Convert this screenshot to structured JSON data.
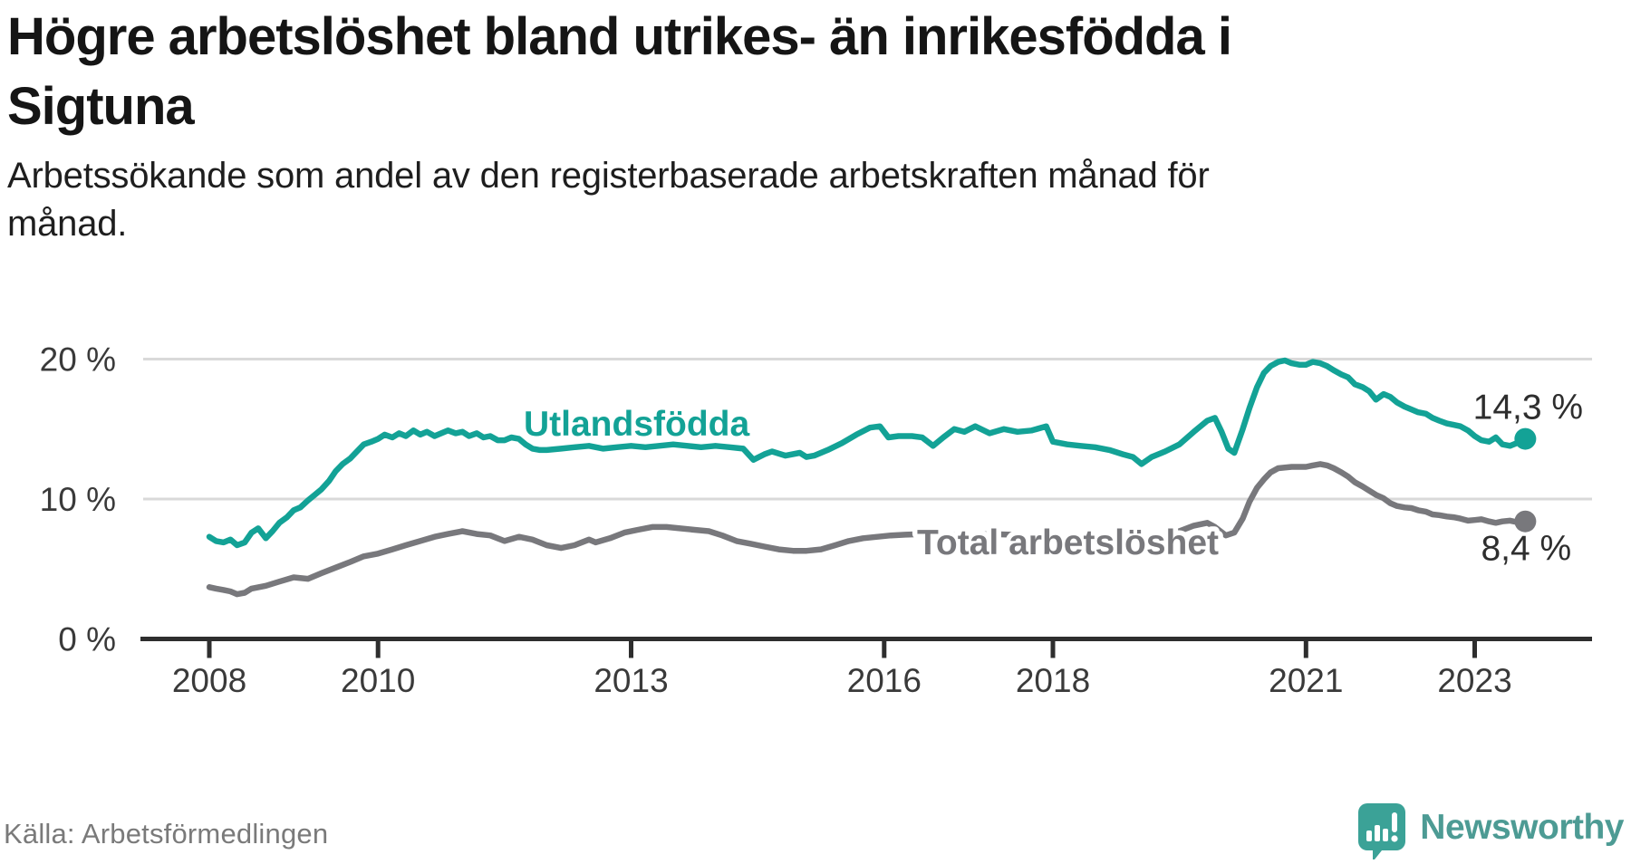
{
  "header": {
    "title_line1": "Högre arbetslöshet bland utrikes- än inrikesfödda i",
    "title_line2": "Sigtuna",
    "subtitle_line1": "Arbetssökande som andel av den registerbaserade arbetskraften månad för",
    "subtitle_line2": "månad."
  },
  "footer": {
    "source": "Källa: Arbetsförmedlingen",
    "brand_name": "Newsworthy",
    "brand_icon": "bar-chart-speech-bubble-icon"
  },
  "colors": {
    "foreign_born_series": "#13a296",
    "total_series": "#78787c",
    "axis": "#2e2e2e",
    "gridline": "#d9d9d9",
    "tick_label": "#3a3a3a",
    "end_label": "#2e2e2e",
    "brand_teal": "#4d9b94",
    "brand_icon_teal": "#3ba297"
  },
  "chart_data": {
    "type": "line",
    "title": "Högre arbetslöshet bland utrikes- än inrikesfödda i Sigtuna",
    "subtitle": "Arbetssökande som andel av den registerbaserade arbetskraften månad för månad.",
    "x_axis": {
      "unit": "year (monthly data)",
      "ticks": [
        2008,
        2010,
        2013,
        2016,
        2018,
        2021,
        2023
      ],
      "range": [
        2007.2,
        2024.4
      ],
      "grid": false
    },
    "y_axis": {
      "unit": "%",
      "ticks": [
        {
          "value": 20,
          "label": "20 %"
        },
        {
          "value": 10,
          "label": "10 %"
        },
        {
          "value": 0,
          "label": "0 %"
        }
      ],
      "range": [
        0,
        21.3
      ],
      "grid": true
    },
    "legend_position": "inline-labels",
    "series": [
      {
        "id": "utlandsfodda",
        "name": "Utlandsfödda",
        "color": "#13a296",
        "end_label": "14,3 %",
        "end_value": 14.3,
        "points": [
          [
            2008.0,
            7.3
          ],
          [
            2008.08,
            7.0
          ],
          [
            2008.17,
            6.9
          ],
          [
            2008.25,
            7.1
          ],
          [
            2008.33,
            6.7
          ],
          [
            2008.42,
            6.9
          ],
          [
            2008.5,
            7.6
          ],
          [
            2008.58,
            7.9
          ],
          [
            2008.67,
            7.2
          ],
          [
            2008.75,
            7.7
          ],
          [
            2008.83,
            8.3
          ],
          [
            2008.92,
            8.7
          ],
          [
            2009.0,
            9.2
          ],
          [
            2009.08,
            9.4
          ],
          [
            2009.17,
            9.9
          ],
          [
            2009.25,
            10.3
          ],
          [
            2009.33,
            10.7
          ],
          [
            2009.42,
            11.3
          ],
          [
            2009.5,
            12.0
          ],
          [
            2009.58,
            12.5
          ],
          [
            2009.67,
            12.9
          ],
          [
            2009.75,
            13.4
          ],
          [
            2009.83,
            13.9
          ],
          [
            2009.92,
            14.1
          ],
          [
            2010.0,
            14.3
          ],
          [
            2010.08,
            14.6
          ],
          [
            2010.17,
            14.4
          ],
          [
            2010.25,
            14.7
          ],
          [
            2010.33,
            14.5
          ],
          [
            2010.42,
            14.9
          ],
          [
            2010.5,
            14.6
          ],
          [
            2010.58,
            14.8
          ],
          [
            2010.67,
            14.5
          ],
          [
            2010.75,
            14.7
          ],
          [
            2010.83,
            14.9
          ],
          [
            2010.92,
            14.7
          ],
          [
            2011.0,
            14.8
          ],
          [
            2011.08,
            14.5
          ],
          [
            2011.17,
            14.7
          ],
          [
            2011.25,
            14.4
          ],
          [
            2011.33,
            14.5
          ],
          [
            2011.42,
            14.2
          ],
          [
            2011.5,
            14.2
          ],
          [
            2011.58,
            14.4
          ],
          [
            2011.67,
            14.3
          ],
          [
            2011.75,
            13.9
          ],
          [
            2011.83,
            13.6
          ],
          [
            2011.92,
            13.5
          ],
          [
            2012.0,
            13.5
          ],
          [
            2012.17,
            13.6
          ],
          [
            2012.33,
            13.7
          ],
          [
            2012.5,
            13.8
          ],
          [
            2012.67,
            13.6
          ],
          [
            2012.83,
            13.7
          ],
          [
            2013.0,
            13.8
          ],
          [
            2013.17,
            13.7
          ],
          [
            2013.33,
            13.8
          ],
          [
            2013.5,
            13.9
          ],
          [
            2013.67,
            13.8
          ],
          [
            2013.83,
            13.7
          ],
          [
            2014.0,
            13.8
          ],
          [
            2014.17,
            13.7
          ],
          [
            2014.33,
            13.6
          ],
          [
            2014.45,
            12.8
          ],
          [
            2014.58,
            13.2
          ],
          [
            2014.67,
            13.4
          ],
          [
            2014.83,
            13.1
          ],
          [
            2015.0,
            13.3
          ],
          [
            2015.08,
            13.0
          ],
          [
            2015.17,
            13.1
          ],
          [
            2015.33,
            13.5
          ],
          [
            2015.5,
            14.0
          ],
          [
            2015.67,
            14.6
          ],
          [
            2015.83,
            15.1
          ],
          [
            2015.95,
            15.2
          ],
          [
            2016.05,
            14.4
          ],
          [
            2016.17,
            14.5
          ],
          [
            2016.33,
            14.5
          ],
          [
            2016.45,
            14.4
          ],
          [
            2016.58,
            13.8
          ],
          [
            2016.7,
            14.4
          ],
          [
            2016.83,
            15.0
          ],
          [
            2016.95,
            14.8
          ],
          [
            2017.08,
            15.2
          ],
          [
            2017.25,
            14.7
          ],
          [
            2017.42,
            15.0
          ],
          [
            2017.58,
            14.8
          ],
          [
            2017.75,
            14.9
          ],
          [
            2017.92,
            15.2
          ],
          [
            2018.0,
            14.1
          ],
          [
            2018.17,
            13.9
          ],
          [
            2018.33,
            13.8
          ],
          [
            2018.5,
            13.7
          ],
          [
            2018.67,
            13.5
          ],
          [
            2018.83,
            13.2
          ],
          [
            2018.95,
            13.0
          ],
          [
            2019.05,
            12.5
          ],
          [
            2019.17,
            13.0
          ],
          [
            2019.33,
            13.4
          ],
          [
            2019.5,
            13.9
          ],
          [
            2019.67,
            14.8
          ],
          [
            2019.83,
            15.6
          ],
          [
            2019.92,
            15.8
          ],
          [
            2020.0,
            14.8
          ],
          [
            2020.08,
            13.6
          ],
          [
            2020.15,
            13.3
          ],
          [
            2020.25,
            15.0
          ],
          [
            2020.33,
            16.5
          ],
          [
            2020.42,
            18.0
          ],
          [
            2020.5,
            19.0
          ],
          [
            2020.58,
            19.5
          ],
          [
            2020.67,
            19.8
          ],
          [
            2020.75,
            19.9
          ],
          [
            2020.83,
            19.7
          ],
          [
            2020.92,
            19.6
          ],
          [
            2021.0,
            19.6
          ],
          [
            2021.08,
            19.8
          ],
          [
            2021.17,
            19.7
          ],
          [
            2021.25,
            19.5
          ],
          [
            2021.33,
            19.2
          ],
          [
            2021.42,
            18.9
          ],
          [
            2021.5,
            18.7
          ],
          [
            2021.58,
            18.2
          ],
          [
            2021.67,
            18.0
          ],
          [
            2021.75,
            17.7
          ],
          [
            2021.83,
            17.1
          ],
          [
            2021.92,
            17.5
          ],
          [
            2022.0,
            17.3
          ],
          [
            2022.08,
            16.9
          ],
          [
            2022.17,
            16.6
          ],
          [
            2022.25,
            16.4
          ],
          [
            2022.33,
            16.2
          ],
          [
            2022.42,
            16.1
          ],
          [
            2022.5,
            15.8
          ],
          [
            2022.58,
            15.6
          ],
          [
            2022.67,
            15.4
          ],
          [
            2022.75,
            15.3
          ],
          [
            2022.83,
            15.2
          ],
          [
            2022.92,
            14.9
          ],
          [
            2023.0,
            14.5
          ],
          [
            2023.08,
            14.2
          ],
          [
            2023.17,
            14.1
          ],
          [
            2023.25,
            14.4
          ],
          [
            2023.33,
            13.9
          ],
          [
            2023.42,
            13.8
          ],
          [
            2023.5,
            14.0
          ],
          [
            2023.55,
            14.1
          ],
          [
            2023.6,
            14.3
          ]
        ]
      },
      {
        "id": "total",
        "name": "Total arbetslöshet",
        "color": "#78787c",
        "end_label": "8,4 %",
        "end_value": 8.4,
        "points": [
          [
            2008.0,
            3.7
          ],
          [
            2008.08,
            3.6
          ],
          [
            2008.17,
            3.5
          ],
          [
            2008.25,
            3.4
          ],
          [
            2008.33,
            3.2
          ],
          [
            2008.42,
            3.3
          ],
          [
            2008.5,
            3.6
          ],
          [
            2008.67,
            3.8
          ],
          [
            2008.83,
            4.1
          ],
          [
            2009.0,
            4.4
          ],
          [
            2009.17,
            4.3
          ],
          [
            2009.33,
            4.7
          ],
          [
            2009.5,
            5.1
          ],
          [
            2009.67,
            5.5
          ],
          [
            2009.83,
            5.9
          ],
          [
            2010.0,
            6.1
          ],
          [
            2010.17,
            6.4
          ],
          [
            2010.33,
            6.7
          ],
          [
            2010.5,
            7.0
          ],
          [
            2010.67,
            7.3
          ],
          [
            2010.83,
            7.5
          ],
          [
            2011.0,
            7.7
          ],
          [
            2011.17,
            7.5
          ],
          [
            2011.33,
            7.4
          ],
          [
            2011.5,
            7.0
          ],
          [
            2011.67,
            7.3
          ],
          [
            2011.83,
            7.1
          ],
          [
            2012.0,
            6.7
          ],
          [
            2012.17,
            6.5
          ],
          [
            2012.33,
            6.7
          ],
          [
            2012.5,
            7.1
          ],
          [
            2012.58,
            6.9
          ],
          [
            2012.75,
            7.2
          ],
          [
            2012.92,
            7.6
          ],
          [
            2013.08,
            7.8
          ],
          [
            2013.25,
            8.0
          ],
          [
            2013.42,
            8.0
          ],
          [
            2013.58,
            7.9
          ],
          [
            2013.75,
            7.8
          ],
          [
            2013.92,
            7.7
          ],
          [
            2014.08,
            7.4
          ],
          [
            2014.25,
            7.0
          ],
          [
            2014.42,
            6.8
          ],
          [
            2014.58,
            6.6
          ],
          [
            2014.75,
            6.4
          ],
          [
            2014.92,
            6.3
          ],
          [
            2015.08,
            6.3
          ],
          [
            2015.25,
            6.4
          ],
          [
            2015.42,
            6.7
          ],
          [
            2015.58,
            7.0
          ],
          [
            2015.75,
            7.2
          ],
          [
            2015.92,
            7.3
          ],
          [
            2016.08,
            7.4
          ],
          [
            2016.25,
            7.45
          ],
          [
            2016.5,
            7.5
          ],
          [
            2016.75,
            7.45
          ],
          [
            2017.0,
            7.4
          ],
          [
            2017.25,
            7.5
          ],
          [
            2017.5,
            7.45
          ],
          [
            2017.75,
            7.3
          ],
          [
            2018.0,
            7.2
          ],
          [
            2018.25,
            7.1
          ],
          [
            2018.5,
            7.0
          ],
          [
            2018.75,
            6.9
          ],
          [
            2019.0,
            6.9
          ],
          [
            2019.25,
            7.2
          ],
          [
            2019.5,
            7.7
          ],
          [
            2019.67,
            8.1
          ],
          [
            2019.83,
            8.3
          ],
          [
            2019.92,
            8.0
          ],
          [
            2020.05,
            7.4
          ],
          [
            2020.15,
            7.6
          ],
          [
            2020.25,
            8.6
          ],
          [
            2020.33,
            9.8
          ],
          [
            2020.42,
            10.8
          ],
          [
            2020.5,
            11.4
          ],
          [
            2020.58,
            11.9
          ],
          [
            2020.67,
            12.2
          ],
          [
            2020.83,
            12.3
          ],
          [
            2021.0,
            12.3
          ],
          [
            2021.08,
            12.4
          ],
          [
            2021.17,
            12.5
          ],
          [
            2021.25,
            12.4
          ],
          [
            2021.33,
            12.2
          ],
          [
            2021.42,
            11.9
          ],
          [
            2021.5,
            11.6
          ],
          [
            2021.58,
            11.2
          ],
          [
            2021.67,
            10.9
          ],
          [
            2021.75,
            10.6
          ],
          [
            2021.83,
            10.3
          ],
          [
            2021.92,
            10.05
          ],
          [
            2022.0,
            9.7
          ],
          [
            2022.08,
            9.5
          ],
          [
            2022.17,
            9.4
          ],
          [
            2022.25,
            9.35
          ],
          [
            2022.33,
            9.2
          ],
          [
            2022.42,
            9.1
          ],
          [
            2022.5,
            8.9
          ],
          [
            2022.58,
            8.85
          ],
          [
            2022.67,
            8.75
          ],
          [
            2022.75,
            8.7
          ],
          [
            2022.83,
            8.6
          ],
          [
            2022.92,
            8.45
          ],
          [
            2023.0,
            8.5
          ],
          [
            2023.08,
            8.55
          ],
          [
            2023.17,
            8.4
          ],
          [
            2023.25,
            8.3
          ],
          [
            2023.33,
            8.4
          ],
          [
            2023.42,
            8.45
          ],
          [
            2023.5,
            8.35
          ],
          [
            2023.6,
            8.4
          ]
        ]
      }
    ]
  }
}
